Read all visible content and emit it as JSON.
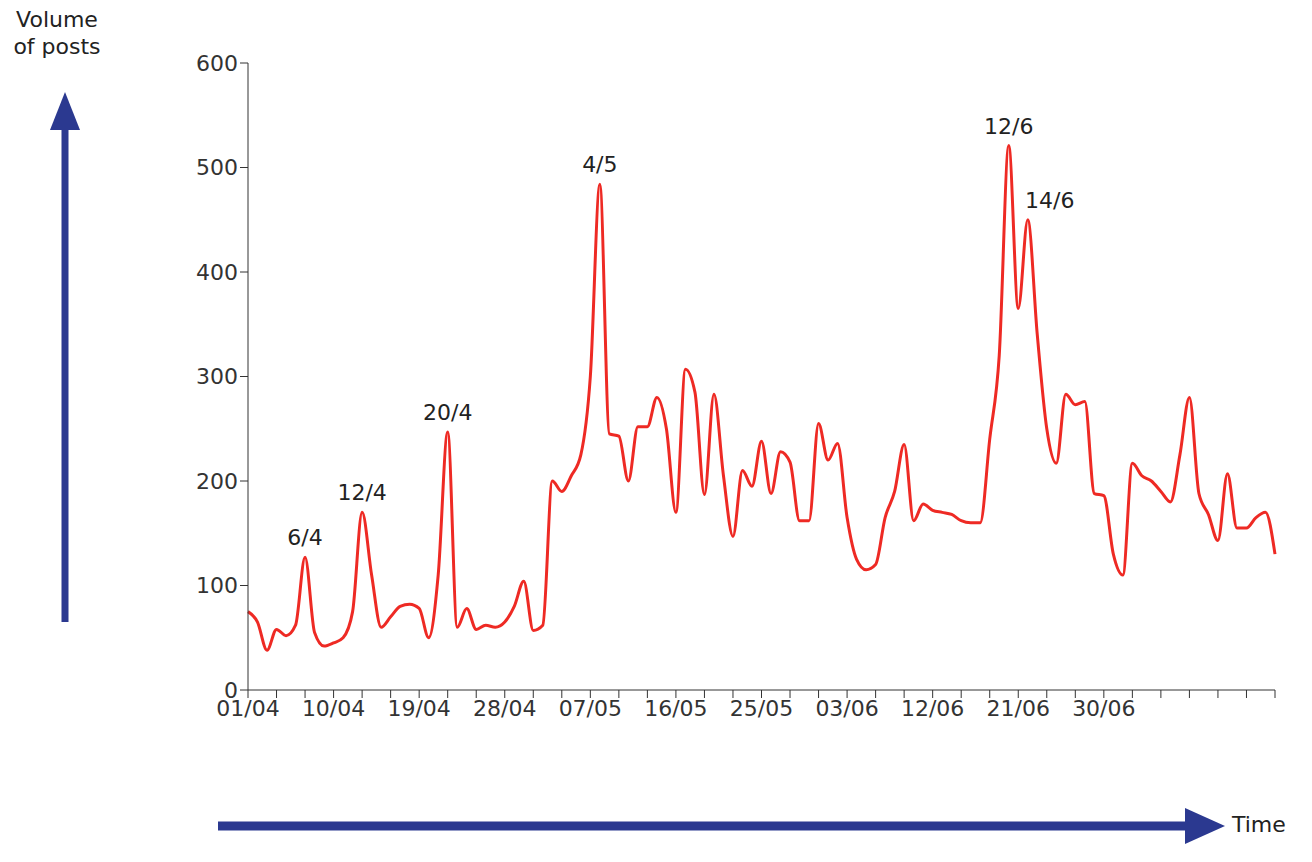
{
  "chart_data": {
    "type": "line",
    "y_label": "Volume of posts",
    "x_label": "Time",
    "color": "#ee2a24",
    "grid": false,
    "ylim": [
      0,
      600
    ],
    "yticks": [
      0,
      100,
      200,
      300,
      400,
      500,
      600
    ],
    "categories": [
      "01/04",
      null,
      null,
      null,
      null,
      null,
      null,
      null,
      null,
      "10/04",
      null,
      null,
      null,
      null,
      null,
      null,
      null,
      null,
      "19/04",
      null,
      null,
      null,
      null,
      null,
      null,
      null,
      null,
      "28/04",
      null,
      null,
      null,
      null,
      null,
      null,
      null,
      null,
      "07/05",
      null,
      null,
      null,
      null,
      null,
      null,
      null,
      null,
      "16/05",
      null,
      null,
      null,
      null,
      null,
      null,
      null,
      null,
      "25/05",
      null,
      null,
      null,
      null,
      null,
      null,
      null,
      null,
      "03/06",
      null,
      null,
      null,
      null,
      null,
      null,
      null,
      null,
      "12/06",
      null,
      null,
      null,
      null,
      null,
      null,
      null,
      null,
      "21/06",
      null,
      null,
      null,
      null,
      null,
      null,
      null,
      null,
      "30/06",
      null,
      null,
      null,
      null,
      null,
      null,
      null,
      null,
      null,
      null,
      null,
      null,
      null,
      null,
      null,
      null,
      null,
      null
    ],
    "values": [
      75,
      65,
      38,
      58,
      52,
      62,
      127,
      55,
      42,
      45,
      50,
      75,
      170,
      110,
      60,
      70,
      80,
      82,
      78,
      50,
      110,
      247,
      60,
      78,
      58,
      62,
      60,
      65,
      80,
      104,
      57,
      62,
      200,
      190,
      205,
      225,
      300,
      484,
      245,
      243,
      200,
      252,
      252,
      280,
      250,
      170,
      307,
      285,
      187,
      283,
      205,
      147,
      210,
      195,
      238,
      188,
      228,
      218,
      162,
      162,
      255,
      220,
      236,
      165,
      125,
      115,
      120,
      165,
      190,
      235,
      162,
      178,
      172,
      170,
      168,
      162,
      160,
      160,
      240,
      320,
      521,
      365,
      450,
      340,
      250,
      217,
      283,
      273,
      276,
      188,
      186,
      130,
      110,
      217,
      205,
      200,
      190,
      180,
      225,
      280,
      188,
      168,
      143,
      207,
      155,
      155,
      165,
      170,
      130
    ],
    "annotations": [
      {
        "x": 6,
        "text": "6/4"
      },
      {
        "x": 12,
        "text": "12/4"
      },
      {
        "x": 21,
        "text": "20/4"
      },
      {
        "x": 37,
        "text": "4/5"
      },
      {
        "x": 80,
        "text": "12/6"
      },
      {
        "x": 82,
        "text": "14/6"
      }
    ]
  }
}
